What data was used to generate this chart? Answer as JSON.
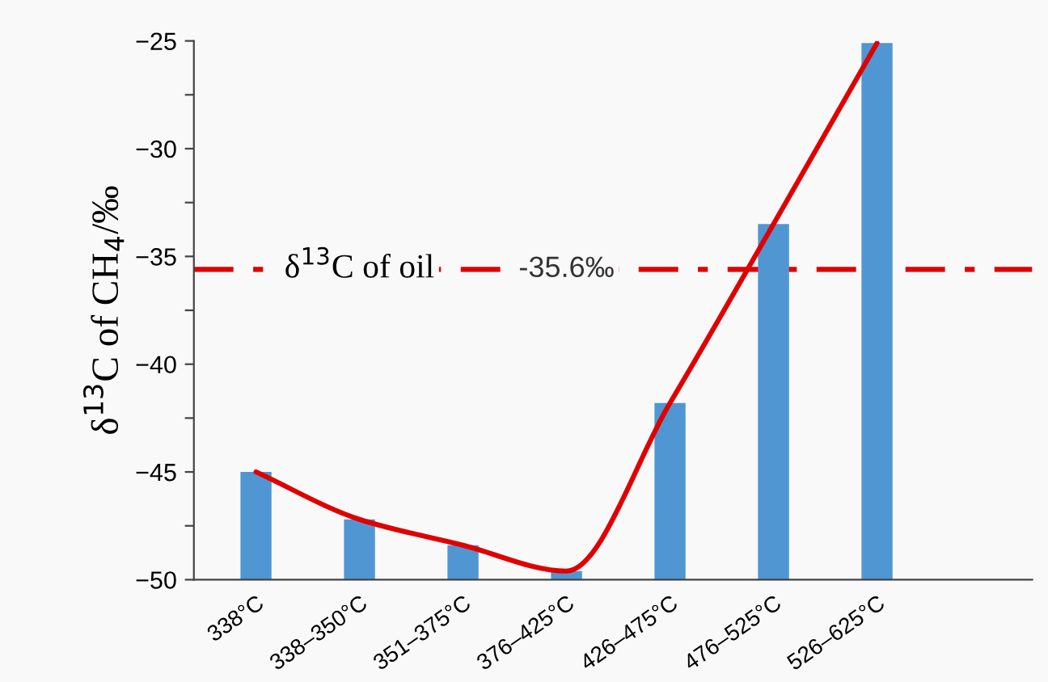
{
  "chart_data": {
    "type": "bar",
    "ylabel": "δ$^{13}$C of CH$_{4}$/‰",
    "categories": [
      "338°C",
      "338–350°C",
      "351–375°C",
      "376–425°C",
      "426–475°C",
      "476–525°C",
      "526–625°C"
    ],
    "series": [
      {
        "color": "#5096d2",
        "values": [
          5.0,
          2.8,
          1.6,
          0.4,
          8.2,
          16.5,
          24.9
        ],
        "base": [
          -50,
          -50,
          -50,
          -50,
          -50,
          -50,
          -50
        ]
      },
      {
        "type": "line",
        "color": "#e00000",
        "values": [
          -45.0,
          -47.2,
          -48.4,
          -49.6,
          -41.8,
          -33.5,
          -25.1
        ]
      }
    ],
    "ylim": [
      -50,
      -25
    ],
    "yticks": [
      -50,
      {
        "value": -47.5,
        "label": null
      },
      -45,
      {
        "value": -42.5,
        "label": null
      },
      -40,
      {
        "value": -37.5,
        "label": null
      },
      -35,
      {
        "value": -32.5,
        "label": null
      },
      -30,
      {
        "value": -27.5,
        "label": null
      },
      -25
    ],
    "ref_lines": [
      {
        "axis": "y",
        "value": -35.6,
        "label": "δ$^{13}$C of oil",
        "color": "#e00000",
        "line_style": "dashdot"
      }
    ],
    "annotations": [
      "-35.6‰"
    ],
    "grid": false,
    "legend": false
  }
}
